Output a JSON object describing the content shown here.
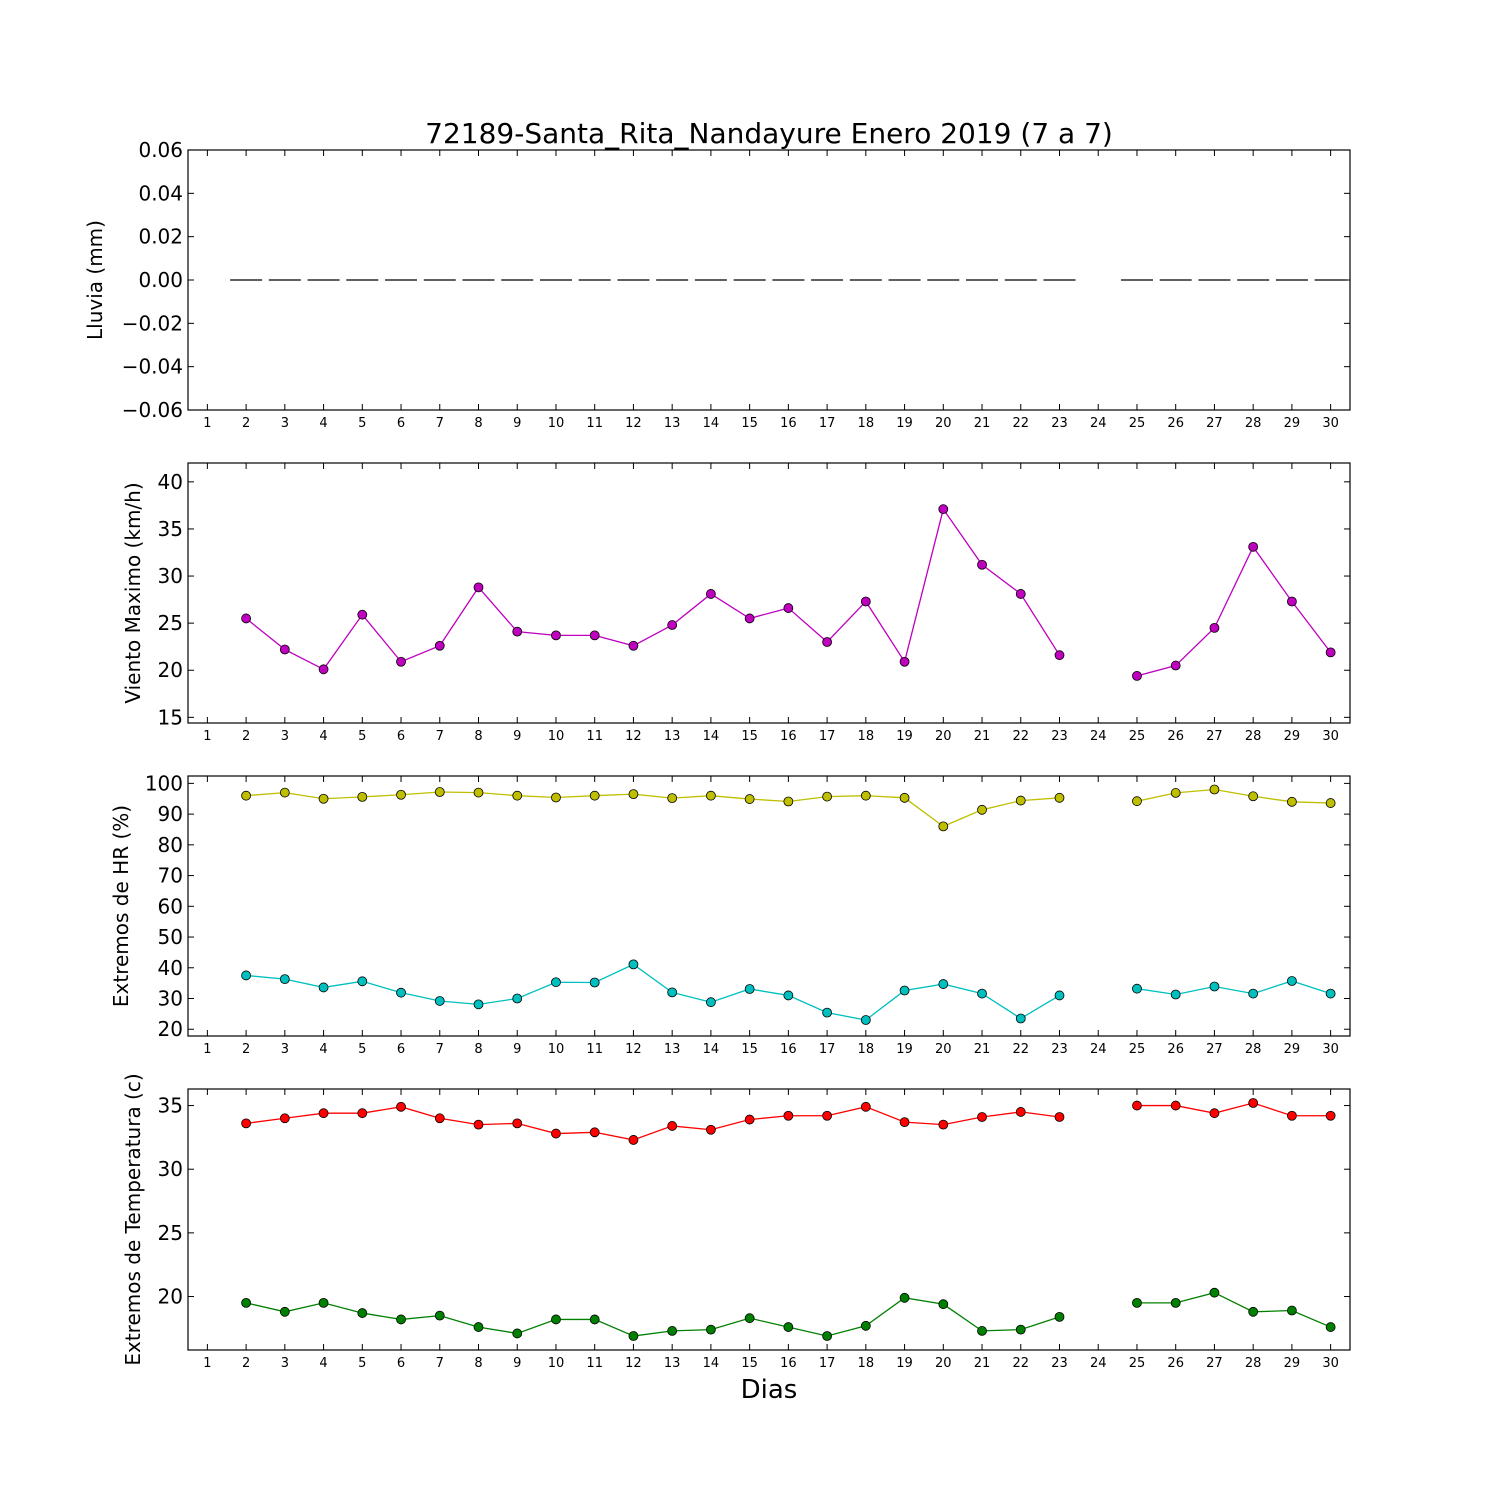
{
  "chart_data": {
    "title": "72189-Santa_Rita_Nandayure Enero 2019  (7 a 7)",
    "xlabel": "Dias",
    "x_ticks": [
      1,
      2,
      3,
      4,
      5,
      6,
      7,
      8,
      9,
      10,
      11,
      12,
      13,
      14,
      15,
      16,
      17,
      18,
      19,
      20,
      21,
      22,
      23,
      24,
      25,
      26,
      27,
      28,
      29,
      30
    ],
    "x": [
      2,
      3,
      4,
      5,
      6,
      7,
      8,
      9,
      10,
      11,
      12,
      13,
      14,
      15,
      16,
      17,
      18,
      19,
      20,
      21,
      22,
      23,
      24,
      25,
      26,
      27,
      28,
      29,
      30
    ],
    "panels": [
      {
        "type": "line",
        "ylabel": "Lluvia (mm)",
        "ylim": [
          -0.06,
          0.06
        ],
        "yticks": [
          -0.06,
          -0.04,
          -0.02,
          0.0,
          0.02,
          0.04,
          0.06
        ],
        "ytick_labels": [
          "−0.06",
          "−0.04",
          "−0.02",
          "0.00",
          "0.02",
          "0.04",
          "0.06"
        ],
        "series": [
          {
            "color": "#000000",
            "style": "bar-dash",
            "marker": "none",
            "values": [
              0,
              0,
              0,
              0,
              0,
              0,
              0,
              0,
              0,
              0,
              0,
              0,
              0,
              0,
              0,
              0,
              0,
              0,
              0,
              0,
              0,
              0,
              null,
              0,
              0,
              0,
              0,
              0,
              0
            ]
          }
        ]
      },
      {
        "type": "line",
        "ylabel": "Viento Maximo (km/h)",
        "ylim": [
          14.4,
          42
        ],
        "yticks": [
          15,
          20,
          25,
          30,
          35,
          40
        ],
        "ytick_labels": [
          "15",
          "20",
          "25",
          "30",
          "35",
          "40"
        ],
        "series": [
          {
            "color": "#bf00bf",
            "marker": "circle",
            "values": [
              25.5,
              22.2,
              20.1,
              25.9,
              20.9,
              22.6,
              28.8,
              24.1,
              23.7,
              23.7,
              22.6,
              24.8,
              28.1,
              25.5,
              26.6,
              23.0,
              27.3,
              20.9,
              37.1,
              31.2,
              28.1,
              21.6,
              null,
              19.4,
              20.5,
              24.5,
              33.1,
              27.3,
              21.9
            ]
          }
        ]
      },
      {
        "type": "line",
        "ylabel": "Extremos de HR (%)",
        "ylim": [
          17.8,
          102.4
        ],
        "yticks": [
          20,
          30,
          40,
          50,
          60,
          70,
          80,
          90,
          100
        ],
        "ytick_labels": [
          "20",
          "30",
          "40",
          "50",
          "60",
          "70",
          "80",
          "90",
          "100"
        ],
        "series": [
          {
            "color": "#bfbf00",
            "marker": "circle",
            "values": [
              96.0,
              97.0,
              95.0,
              95.6,
              96.3,
              97.2,
              97.0,
              96.0,
              95.4,
              96.0,
              96.5,
              95.2,
              96.0,
              94.9,
              94.1,
              95.7,
              96.0,
              95.3,
              86.0,
              91.4,
              94.4,
              95.3,
              null,
              94.2,
              96.9,
              98.0,
              95.8,
              94.0,
              93.6
            ]
          },
          {
            "color": "#00bfbf",
            "marker": "circle",
            "values": [
              37.5,
              36.3,
              33.6,
              35.6,
              31.9,
              29.2,
              28.1,
              30.0,
              35.3,
              35.2,
              41.1,
              32.0,
              28.8,
              33.1,
              31.0,
              25.4,
              23.0,
              32.6,
              34.7,
              31.6,
              23.5,
              31.0,
              null,
              33.2,
              31.3,
              33.9,
              31.6,
              35.7,
              31.6
            ]
          }
        ]
      },
      {
        "type": "line",
        "ylabel": "Extremos de Temperatura (c)",
        "ylim": [
          15.8,
          36.3
        ],
        "yticks": [
          20,
          25,
          30,
          35
        ],
        "ytick_labels": [
          "20",
          "25",
          "30",
          "35"
        ],
        "series": [
          {
            "color": "#ff0000",
            "marker": "circle",
            "values": [
              33.6,
              34.0,
              34.4,
              34.4,
              34.9,
              34.0,
              33.5,
              33.6,
              32.8,
              32.9,
              32.3,
              33.4,
              33.1,
              33.9,
              34.2,
              34.2,
              34.9,
              33.7,
              33.5,
              34.1,
              34.5,
              34.1,
              null,
              35.0,
              35.0,
              34.4,
              35.2,
              34.2,
              34.2
            ]
          },
          {
            "color": "#008000",
            "marker": "circle",
            "values": [
              19.5,
              18.8,
              19.5,
              18.7,
              18.2,
              18.5,
              17.6,
              17.1,
              18.2,
              18.2,
              16.9,
              17.3,
              17.4,
              18.3,
              17.6,
              16.9,
              17.7,
              19.9,
              19.4,
              17.3,
              17.4,
              18.4,
              null,
              19.5,
              19.5,
              20.3,
              18.8,
              18.9,
              17.6
            ]
          }
        ]
      }
    ]
  }
}
